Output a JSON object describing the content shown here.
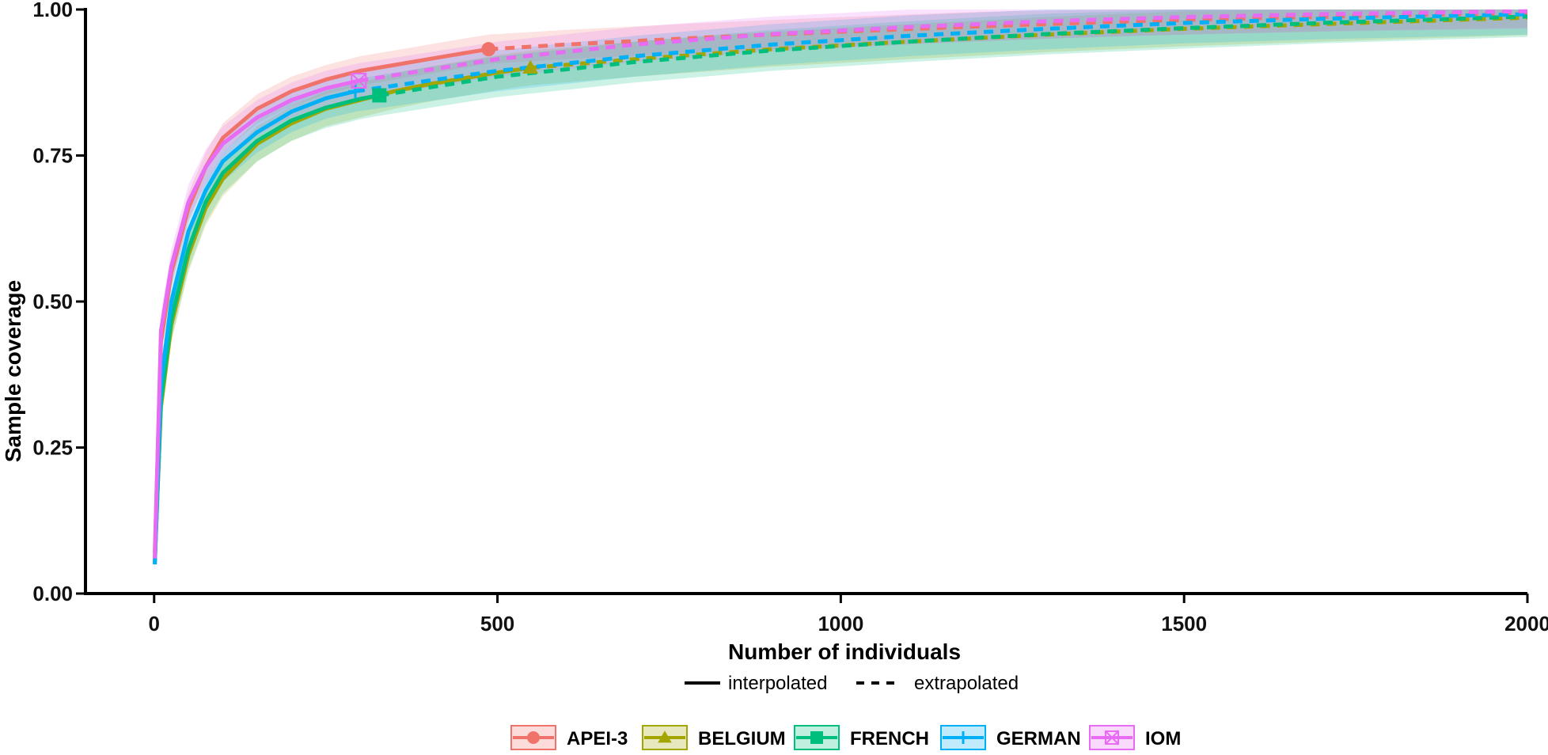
{
  "chart_data": {
    "type": "line",
    "title": "",
    "xlabel": "Number of individuals",
    "ylabel": "Sample coverage",
    "xlim": [
      -100,
      2000
    ],
    "ylim": [
      0,
      1.0
    ],
    "x_ticks": [
      0,
      500,
      1000,
      1500,
      2000
    ],
    "x_tick_labels": [
      "0",
      "500",
      "1000",
      "1500",
      "2000"
    ],
    "y_ticks": [
      0,
      0.25,
      0.5,
      0.75,
      1.0
    ],
    "y_tick_labels": [
      "0.00",
      "0.25",
      "0.50",
      "0.75",
      "1.00"
    ],
    "grid": false,
    "linetype_legend": {
      "interpolated": "interpolated",
      "extrapolated": "extrapolated"
    },
    "legend_placement": "bottom",
    "series": [
      {
        "name": "APEI-3",
        "color": "#f0736b",
        "marker": "circle",
        "observed": {
          "x": 487,
          "y": 0.932
        },
        "interpolated": [
          [
            1,
            0.07
          ],
          [
            10,
            0.43
          ],
          [
            25,
            0.55
          ],
          [
            50,
            0.66
          ],
          [
            75,
            0.73
          ],
          [
            100,
            0.78
          ],
          [
            150,
            0.83
          ],
          [
            200,
            0.86
          ],
          [
            250,
            0.88
          ],
          [
            300,
            0.895
          ],
          [
            350,
            0.905
          ],
          [
            400,
            0.915
          ],
          [
            450,
            0.925
          ],
          [
            487,
            0.932
          ]
        ],
        "extrapolated": [
          [
            487,
            0.932
          ],
          [
            600,
            0.94
          ],
          [
            800,
            0.952
          ],
          [
            1000,
            0.962
          ],
          [
            1200,
            0.971
          ],
          [
            1400,
            0.979
          ],
          [
            1600,
            0.985
          ],
          [
            1800,
            0.99
          ],
          [
            2000,
            0.994
          ]
        ],
        "ci_halfwidth": 0.025
      },
      {
        "name": "BELGIUM",
        "color": "#a3a500",
        "marker": "triangle",
        "observed": {
          "x": 548,
          "y": 0.9
        },
        "interpolated": [
          [
            1,
            0.055
          ],
          [
            10,
            0.32
          ],
          [
            25,
            0.46
          ],
          [
            50,
            0.58
          ],
          [
            75,
            0.66
          ],
          [
            100,
            0.71
          ],
          [
            150,
            0.77
          ],
          [
            200,
            0.805
          ],
          [
            250,
            0.83
          ],
          [
            300,
            0.845
          ],
          [
            350,
            0.86
          ],
          [
            400,
            0.872
          ],
          [
            450,
            0.882
          ],
          [
            500,
            0.892
          ],
          [
            548,
            0.9
          ]
        ],
        "extrapolated": [
          [
            548,
            0.9
          ],
          [
            700,
            0.915
          ],
          [
            900,
            0.932
          ],
          [
            1100,
            0.945
          ],
          [
            1300,
            0.957
          ],
          [
            1500,
            0.967
          ],
          [
            1700,
            0.975
          ],
          [
            2000,
            0.986
          ]
        ],
        "ci_halfwidth": 0.03
      },
      {
        "name": "FRENCH",
        "color": "#00bf7d",
        "marker": "square",
        "observed": {
          "x": 328,
          "y": 0.853
        },
        "interpolated": [
          [
            1,
            0.05
          ],
          [
            10,
            0.33
          ],
          [
            25,
            0.47
          ],
          [
            50,
            0.59
          ],
          [
            75,
            0.67
          ],
          [
            100,
            0.72
          ],
          [
            150,
            0.775
          ],
          [
            200,
            0.81
          ],
          [
            250,
            0.832
          ],
          [
            300,
            0.847
          ],
          [
            328,
            0.853
          ]
        ],
        "extrapolated": [
          [
            328,
            0.853
          ],
          [
            500,
            0.885
          ],
          [
            700,
            0.91
          ],
          [
            900,
            0.93
          ],
          [
            1100,
            0.945
          ],
          [
            1300,
            0.958
          ],
          [
            1500,
            0.968
          ],
          [
            1700,
            0.977
          ],
          [
            2000,
            0.988
          ]
        ],
        "ci_halfwidth": 0.035
      },
      {
        "name": "GERMAN",
        "color": "#00b0f6",
        "marker": "plus",
        "observed": {
          "x": 293,
          "y": 0.86
        },
        "interpolated": [
          [
            1,
            0.05
          ],
          [
            10,
            0.36
          ],
          [
            25,
            0.5
          ],
          [
            50,
            0.62
          ],
          [
            75,
            0.69
          ],
          [
            100,
            0.74
          ],
          [
            150,
            0.79
          ],
          [
            200,
            0.825
          ],
          [
            250,
            0.848
          ],
          [
            293,
            0.86
          ]
        ],
        "extrapolated": [
          [
            293,
            0.86
          ],
          [
            500,
            0.895
          ],
          [
            700,
            0.92
          ],
          [
            900,
            0.94
          ],
          [
            1100,
            0.955
          ],
          [
            1300,
            0.967
          ],
          [
            1500,
            0.977
          ],
          [
            1700,
            0.984
          ],
          [
            2000,
            0.992
          ]
        ],
        "ci_halfwidth": 0.035
      },
      {
        "name": "IOM",
        "color": "#e76bf3",
        "marker": "square-x",
        "observed": {
          "x": 298,
          "y": 0.878
        },
        "interpolated": [
          [
            1,
            0.06
          ],
          [
            10,
            0.45
          ],
          [
            25,
            0.56
          ],
          [
            50,
            0.67
          ],
          [
            75,
            0.73
          ],
          [
            100,
            0.77
          ],
          [
            150,
            0.815
          ],
          [
            200,
            0.845
          ],
          [
            250,
            0.865
          ],
          [
            298,
            0.878
          ]
        ],
        "extrapolated": [
          [
            298,
            0.878
          ],
          [
            500,
            0.915
          ],
          [
            700,
            0.94
          ],
          [
            900,
            0.958
          ],
          [
            1100,
            0.97
          ],
          [
            1300,
            0.98
          ],
          [
            1500,
            0.987
          ],
          [
            1700,
            0.992
          ],
          [
            2000,
            0.997
          ]
        ],
        "ci_halfwidth": 0.03
      }
    ]
  }
}
